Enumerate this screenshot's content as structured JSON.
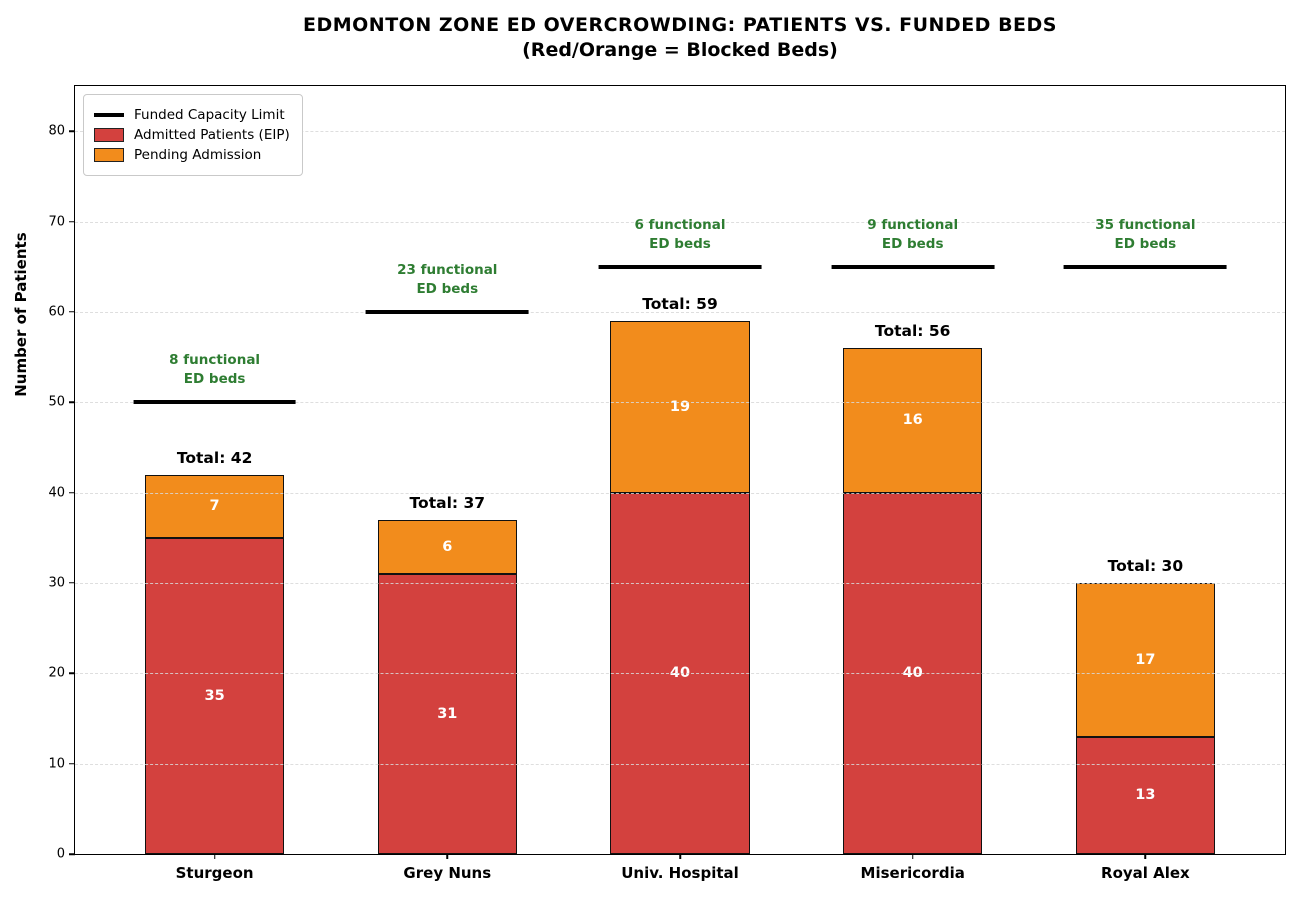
{
  "title": {
    "line1": "EDMONTON ZONE ED OVERCROWDING: PATIENTS VS. FUNDED BEDS",
    "line2": "(Red/Orange = Blocked Beds)"
  },
  "ylabel": "Number of Patients",
  "legend": [
    {
      "type": "line",
      "label": "Funded Capacity Limit",
      "color": "#000000"
    },
    {
      "type": "box",
      "label": "Admitted Patients (EIP)",
      "color": "#d3413e"
    },
    {
      "type": "box",
      "label": "Pending Admission",
      "color": "#f28c1c"
    }
  ],
  "chart_data": {
    "type": "bar",
    "stacked": true,
    "title": "EDMONTON ZONE ED OVERCROWDING: PATIENTS VS. FUNDED BEDS (Red/Orange = Blocked Beds)",
    "xlabel": "",
    "ylabel": "Number of Patients",
    "categories": [
      "Sturgeon",
      "Grey Nuns",
      "Univ. Hospital",
      "Misericordia",
      "Royal Alex"
    ],
    "series": [
      {
        "name": "Admitted Patients (EIP)",
        "color": "#d3413e",
        "values": [
          35,
          31,
          40,
          40,
          13
        ]
      },
      {
        "name": "Pending Admission",
        "color": "#f28c1c",
        "values": [
          7,
          6,
          19,
          16,
          17
        ]
      }
    ],
    "totals": [
      42,
      37,
      59,
      56,
      30
    ],
    "total_label_prefix": "Total: ",
    "funded_capacity_limits": [
      50,
      60,
      65,
      65,
      65
    ],
    "functional_ed_beds": [
      8,
      23,
      6,
      9,
      35
    ],
    "annotations": [
      [
        "8 functional",
        "ED beds"
      ],
      [
        "23 functional",
        "ED beds"
      ],
      [
        "6 functional",
        "ED beds"
      ],
      [
        "9 functional",
        "ED beds"
      ],
      [
        "35 functional",
        "ED beds"
      ]
    ],
    "yticks": [
      0,
      10,
      20,
      30,
      40,
      50,
      60,
      70,
      80
    ],
    "ylim": [
      0,
      85
    ],
    "grid": "horizontal-dashed",
    "legend_position": "upper-left",
    "colors": {
      "admitted": "#d3413e",
      "pending": "#f28c1c",
      "capacity_line": "#000000",
      "annotation_text": "#2e7d32",
      "grid": "#d8d8d8"
    }
  }
}
